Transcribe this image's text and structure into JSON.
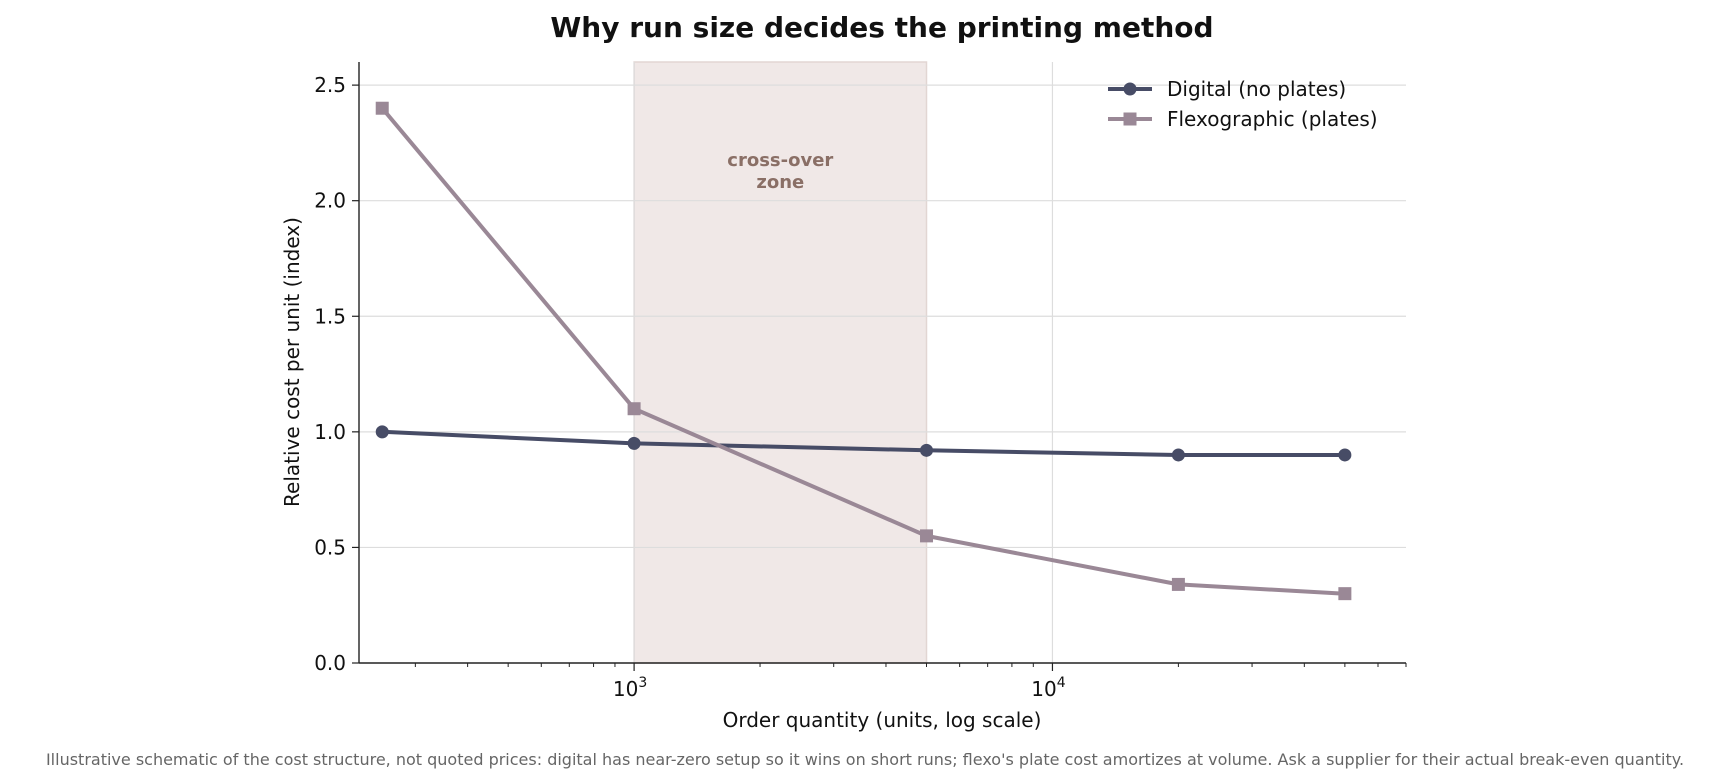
{
  "chart_data": {
    "type": "line",
    "title": "Why run size decides the printing method",
    "xlabel": "Order quantity (units, log scale)",
    "ylabel": "Relative cost per unit (index)",
    "x_scale": "log",
    "xlim": [
      220,
      70000
    ],
    "ylim": [
      0,
      2.6
    ],
    "x_ticks": [
      {
        "value": 1000,
        "base": "10",
        "exp": "3"
      },
      {
        "value": 10000,
        "base": "10",
        "exp": "4"
      }
    ],
    "y_ticks": [
      {
        "value": 0,
        "label": "0.0"
      },
      {
        "value": 0.5,
        "label": "0.5"
      },
      {
        "value": 1.0,
        "label": "1.0"
      },
      {
        "value": 1.5,
        "label": "1.5"
      },
      {
        "value": 2.0,
        "label": "2.0"
      },
      {
        "value": 2.5,
        "label": "2.5"
      }
    ],
    "grid": true,
    "legend_position": "top-right",
    "series": [
      {
        "name": "Digital (no plates)",
        "color": "#474c66",
        "marker": "circle",
        "points": [
          [
            250,
            1.0
          ],
          [
            1000,
            0.95
          ],
          [
            5000,
            0.92
          ],
          [
            20000,
            0.9
          ],
          [
            50000,
            0.9
          ]
        ]
      },
      {
        "name": "Flexographic (plates)",
        "color": "#9a8896",
        "marker": "square",
        "points": [
          [
            250,
            2.4
          ],
          [
            1000,
            1.1
          ],
          [
            5000,
            0.55
          ],
          [
            20000,
            0.34
          ],
          [
            50000,
            0.3
          ]
        ]
      }
    ],
    "shaded_region": {
      "x_from": 1000,
      "x_to": 5000,
      "label_lines": [
        "cross-over",
        "zone"
      ],
      "label_y": 2.15,
      "fill": "#f0e8e7",
      "edge": "#e2d6d3",
      "label_color": "#8a6f66"
    },
    "caption": "Illustrative schematic of the cost structure, not quoted prices: digital has near-zero setup so it wins on short runs; flexo's plate cost amortizes at volume. Ask a supplier for their actual break-even quantity."
  }
}
